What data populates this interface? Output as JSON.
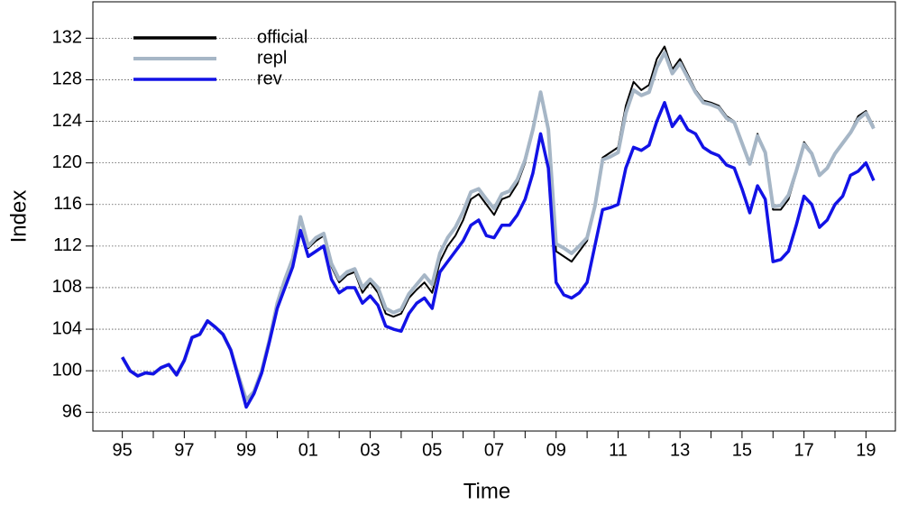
{
  "chart_data": {
    "type": "line",
    "xlabel": "Time",
    "ylabel": "Index",
    "xlim": [
      1994.05,
      2019.95
    ],
    "ylim": [
      94.2,
      135.5
    ],
    "xticks": [
      {
        "value": 1995,
        "label": "95"
      },
      {
        "value": 1997,
        "label": "97"
      },
      {
        "value": 1999,
        "label": "99"
      },
      {
        "value": 2001,
        "label": "01"
      },
      {
        "value": 2003,
        "label": "03"
      },
      {
        "value": 2005,
        "label": "05"
      },
      {
        "value": 2007,
        "label": "07"
      },
      {
        "value": 2009,
        "label": "09"
      },
      {
        "value": 2011,
        "label": "11"
      },
      {
        "value": 2013,
        "label": "13"
      },
      {
        "value": 2015,
        "label": "15"
      },
      {
        "value": 2017,
        "label": "17"
      },
      {
        "value": 2019,
        "label": "19"
      }
    ],
    "xminorticks": [
      1996,
      1998,
      2000,
      2002,
      2004,
      2006,
      2008,
      2010,
      2012,
      2014,
      2016,
      2018
    ],
    "yticks": [
      96,
      100,
      104,
      108,
      112,
      116,
      120,
      124,
      128,
      132
    ],
    "grid": true,
    "legend": "top-left",
    "x": [
      1995,
      1995.25,
      1995.5,
      1995.75,
      1996,
      1996.25,
      1996.5,
      1996.75,
      1997,
      1997.25,
      1997.5,
      1997.75,
      1998,
      1998.25,
      1998.5,
      1998.75,
      1999,
      1999.25,
      1999.5,
      1999.75,
      2000,
      2000.25,
      2000.5,
      2000.75,
      2001,
      2001.25,
      2001.5,
      2001.75,
      2002,
      2002.25,
      2002.5,
      2002.75,
      2003,
      2003.25,
      2003.5,
      2003.75,
      2004,
      2004.25,
      2004.5,
      2004.75,
      2005,
      2005.25,
      2005.5,
      2005.75,
      2006,
      2006.25,
      2006.5,
      2006.75,
      2007,
      2007.25,
      2007.5,
      2007.75,
      2008,
      2008.25,
      2008.5,
      2008.75,
      2009,
      2009.25,
      2009.5,
      2009.75,
      2010,
      2010.25,
      2010.5,
      2010.75,
      2011,
      2011.25,
      2011.5,
      2011.75,
      2012,
      2012.25,
      2012.5,
      2012.75,
      2013,
      2013.25,
      2013.5,
      2013.75,
      2014,
      2014.25,
      2014.5,
      2014.75,
      2015,
      2015.25,
      2015.5,
      2015.75,
      2016,
      2016.25,
      2016.5,
      2016.75,
      2017,
      2017.25,
      2017.5,
      2017.75,
      2018,
      2018.25,
      2018.5,
      2018.75,
      2019,
      2019.25
    ],
    "series": [
      {
        "name": "official",
        "color": "#000000",
        "width": 2,
        "values": [
          101.3,
          100.0,
          99.5,
          99.8,
          99.7,
          100.3,
          100.6,
          99.6,
          101.0,
          103.2,
          103.5,
          104.8,
          104.2,
          103.5,
          102.0,
          99.5,
          97.2,
          98.0,
          100.0,
          103.0,
          106.5,
          108.5,
          110.5,
          114.5,
          111.8,
          112.5,
          113.0,
          110.0,
          108.5,
          109.2,
          109.5,
          107.5,
          108.5,
          107.5,
          105.5,
          105.2,
          105.5,
          107.0,
          107.8,
          108.5,
          107.5,
          110.5,
          112.0,
          113.0,
          114.5,
          116.5,
          117.0,
          116.0,
          115.0,
          116.5,
          116.8,
          118.0,
          120.0,
          123.0,
          126.8,
          123.0,
          111.5,
          111.0,
          110.5,
          111.5,
          112.5,
          116.0,
          120.5,
          121.0,
          121.5,
          125.5,
          127.8,
          127.0,
          127.5,
          130.0,
          131.2,
          129.0,
          130.0,
          128.5,
          127.0,
          126.0,
          125.8,
          125.5,
          124.5,
          124.0,
          122.0,
          120.0,
          122.8,
          121.0,
          115.5,
          115.5,
          116.5,
          119.0,
          122.0,
          121.0,
          118.8,
          119.5,
          121.0,
          122.0,
          123.0,
          124.5,
          125.0,
          123.5
        ]
      },
      {
        "name": "repl",
        "color": "#a6b6c6",
        "width": 4,
        "values": [
          101.3,
          100.0,
          99.5,
          99.8,
          99.7,
          100.3,
          100.6,
          99.6,
          101.0,
          103.2,
          103.5,
          104.8,
          104.2,
          103.5,
          102.0,
          99.5,
          97.2,
          98.0,
          100.0,
          103.0,
          106.5,
          108.8,
          110.8,
          114.8,
          112.0,
          112.8,
          113.2,
          110.3,
          108.8,
          109.5,
          109.8,
          108.0,
          108.8,
          108.0,
          106.0,
          105.6,
          105.9,
          107.4,
          108.3,
          109.2,
          108.3,
          111.3,
          112.8,
          113.8,
          115.3,
          117.2,
          117.5,
          116.5,
          115.6,
          117.0,
          117.3,
          118.4,
          120.3,
          123.2,
          126.8,
          123.2,
          112.2,
          111.8,
          111.3,
          112.0,
          112.8,
          115.8,
          120.3,
          120.6,
          121.0,
          124.8,
          127.0,
          126.5,
          126.8,
          129.2,
          130.6,
          128.6,
          129.6,
          128.2,
          126.8,
          125.8,
          125.6,
          125.3,
          124.3,
          123.9,
          121.9,
          119.9,
          122.6,
          121.0,
          115.8,
          115.9,
          116.9,
          119.2,
          121.8,
          120.9,
          118.8,
          119.5,
          120.9,
          121.9,
          122.9,
          124.2,
          124.8,
          123.3
        ]
      },
      {
        "name": "rev",
        "color": "#1212e6",
        "width": 3.5,
        "values": [
          101.3,
          100.0,
          99.5,
          99.8,
          99.7,
          100.3,
          100.6,
          99.6,
          101.0,
          103.2,
          103.5,
          104.8,
          104.2,
          103.5,
          102.0,
          99.3,
          96.5,
          97.8,
          99.8,
          102.8,
          106.0,
          108.0,
          110.0,
          113.5,
          111.0,
          111.5,
          112.0,
          108.8,
          107.5,
          108.0,
          108.0,
          106.5,
          107.2,
          106.3,
          104.3,
          104.0,
          103.8,
          105.5,
          106.5,
          107.0,
          106.0,
          109.5,
          110.5,
          111.5,
          112.5,
          114.0,
          114.5,
          113.0,
          112.8,
          114.0,
          114.0,
          115.0,
          116.5,
          119.0,
          122.8,
          119.5,
          108.5,
          107.3,
          107.0,
          107.5,
          108.5,
          112.0,
          115.5,
          115.7,
          116.0,
          119.5,
          121.5,
          121.2,
          121.7,
          124.0,
          125.8,
          123.5,
          124.5,
          123.2,
          122.8,
          121.5,
          121.0,
          120.7,
          119.8,
          119.5,
          117.5,
          115.2,
          117.8,
          116.5,
          110.5,
          110.7,
          111.5,
          114.0,
          116.8,
          116.0,
          113.8,
          114.5,
          116.0,
          116.8,
          118.8,
          119.2,
          120.0,
          118.3
        ]
      }
    ]
  }
}
